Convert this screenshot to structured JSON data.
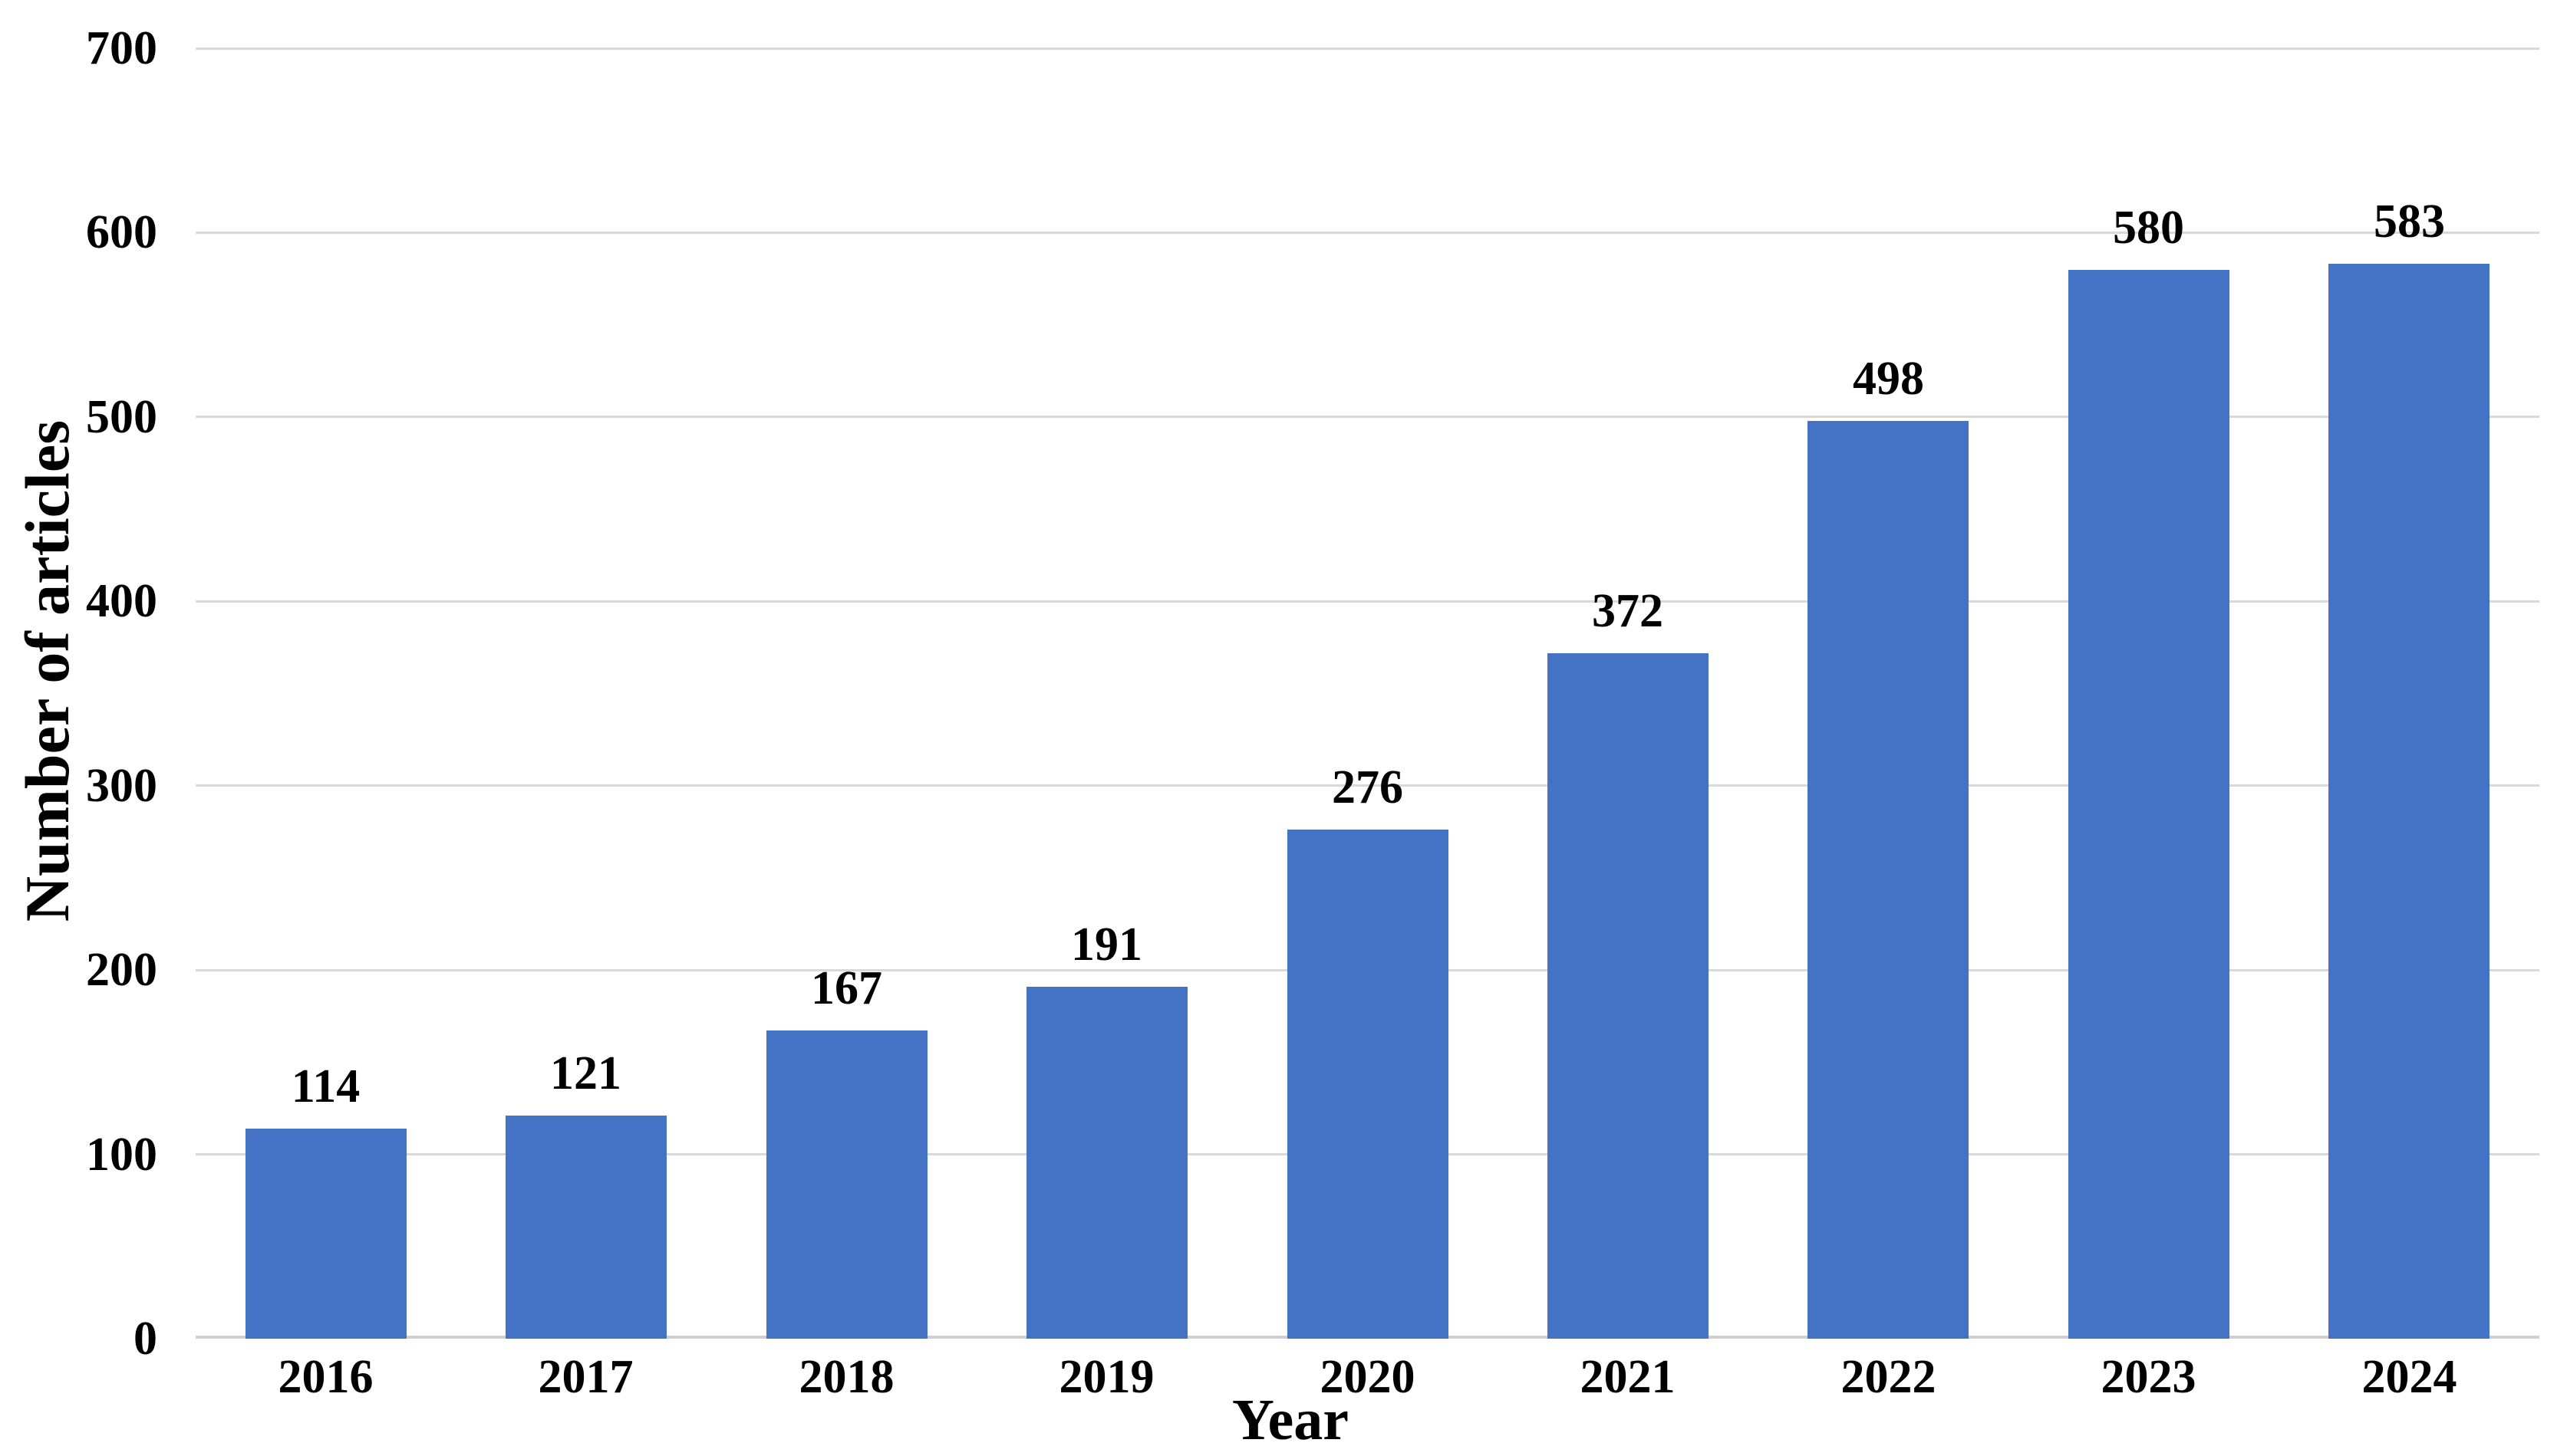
{
  "chart_data": {
    "type": "bar",
    "title": "",
    "xlabel": "Year",
    "ylabel": "Number of articles",
    "categories": [
      "2016",
      "2017",
      "2018",
      "2019",
      "2020",
      "2021",
      "2022",
      "2023",
      "2024"
    ],
    "values": [
      114,
      121,
      167,
      191,
      276,
      372,
      498,
      580,
      583
    ],
    "ylim": [
      0,
      700
    ],
    "yticks": [
      0,
      100,
      200,
      300,
      400,
      500,
      600,
      700
    ],
    "grid": "horizontal",
    "legend": "none",
    "data_labels_visible": true,
    "colors": {
      "bar": "#4472c4",
      "gridline": "#d9d9d9",
      "axis_line": "#cfcfcf",
      "text": "#000000",
      "background": "#ffffff"
    }
  }
}
